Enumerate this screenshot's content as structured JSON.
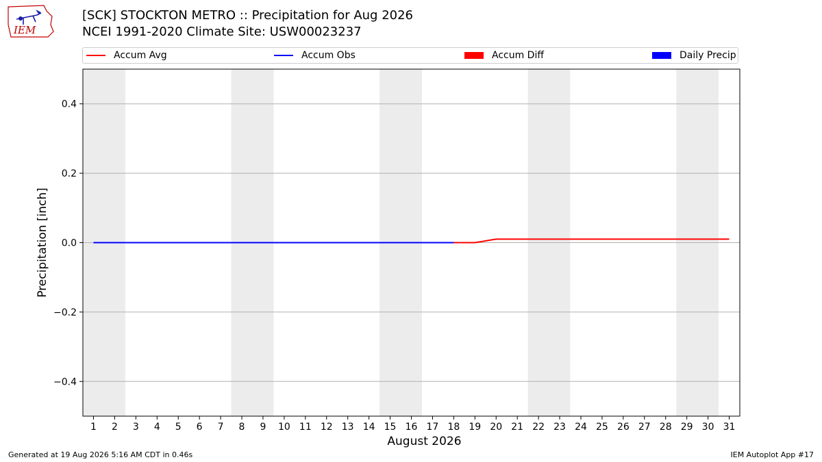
{
  "logo_text": "IEM",
  "title_line1": "[SCK] STOCKTON METRO :: Precipitation for Aug 2026",
  "title_line2": "NCEI 1991-2020 Climate Site: USW00023237",
  "legend": [
    {
      "label": "Accum Avg",
      "color": "#ff0000",
      "kind": "line"
    },
    {
      "label": "Accum Obs",
      "color": "#0000ff",
      "kind": "line"
    },
    {
      "label": "Accum Diff",
      "color": "#ff0000",
      "kind": "box"
    },
    {
      "label": "Daily Precip",
      "color": "#0000ff",
      "kind": "box"
    }
  ],
  "footer_left": "Generated at 19 Aug 2026 5:16 AM CDT in 0.46s",
  "footer_right": "IEM Autoplot App #17",
  "chart_data": {
    "type": "line",
    "xlabel": "August 2026",
    "ylabel": "Precipitation [inch]",
    "xlim": [
      0.5,
      31.5
    ],
    "ylim": [
      -0.5,
      0.5
    ],
    "x_ticks": [
      1,
      2,
      3,
      4,
      5,
      6,
      7,
      8,
      9,
      10,
      11,
      12,
      13,
      14,
      15,
      16,
      17,
      18,
      19,
      20,
      21,
      22,
      23,
      24,
      25,
      26,
      27,
      28,
      29,
      30,
      31
    ],
    "y_ticks": [
      -0.4,
      -0.2,
      0.0,
      0.2,
      0.4
    ],
    "y_tick_labels": [
      "−0.4",
      "−0.2",
      "0.0",
      "0.2",
      "0.4"
    ],
    "grid": "y",
    "weekend_shading": [
      [
        0.5,
        2.5
      ],
      [
        7.5,
        9.5
      ],
      [
        14.5,
        16.5
      ],
      [
        21.5,
        23.5
      ],
      [
        28.5,
        30.5
      ]
    ],
    "shading_color": "#ececec",
    "series": [
      {
        "name": "Accum Avg",
        "color": "#ff0000",
        "x": [
          1,
          2,
          3,
          4,
          5,
          6,
          7,
          8,
          9,
          10,
          11,
          12,
          13,
          14,
          15,
          16,
          17,
          18,
          19,
          20,
          21,
          22,
          23,
          24,
          25,
          26,
          27,
          28,
          29,
          30,
          31
        ],
        "values": [
          0,
          0,
          0,
          0,
          0,
          0,
          0,
          0,
          0,
          0,
          0,
          0,
          0,
          0,
          0,
          0,
          0,
          0,
          0,
          0.01,
          0.01,
          0.01,
          0.01,
          0.01,
          0.01,
          0.01,
          0.01,
          0.01,
          0.01,
          0.01,
          0.01
        ]
      },
      {
        "name": "Accum Obs",
        "color": "#0000ff",
        "x": [
          1,
          2,
          3,
          4,
          5,
          6,
          7,
          8,
          9,
          10,
          11,
          12,
          13,
          14,
          15,
          16,
          17,
          18
        ],
        "values": [
          0,
          0,
          0,
          0,
          0,
          0,
          0,
          0,
          0,
          0,
          0,
          0,
          0,
          0,
          0,
          0,
          0,
          0
        ]
      }
    ]
  }
}
